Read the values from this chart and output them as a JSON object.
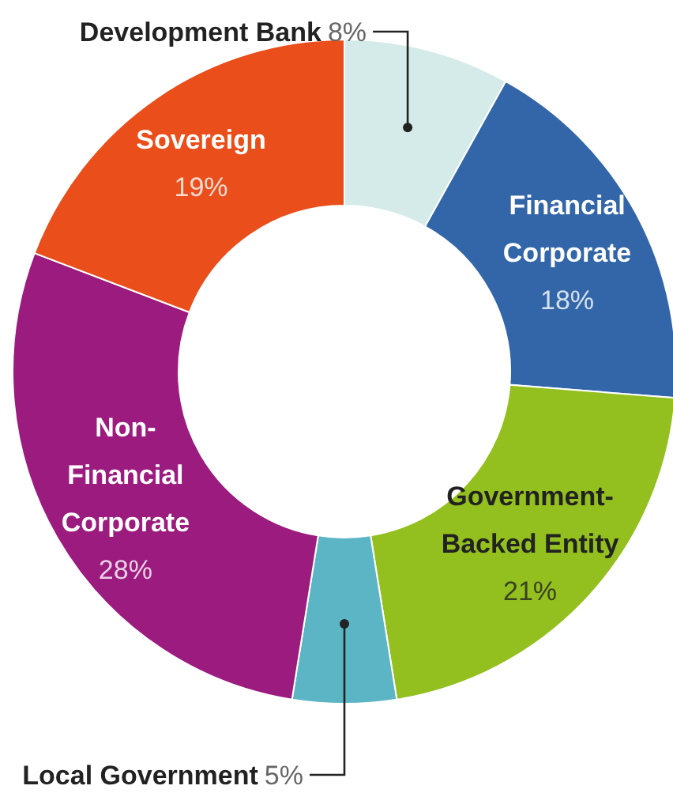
{
  "chart_data": {
    "type": "donut",
    "categories": [
      "Development Bank",
      "Financial Corporate",
      "Government-Backed Entity",
      "Local Government",
      "Non-Financial Corporate",
      "Sovereign"
    ],
    "values": [
      8,
      18,
      21,
      5,
      28,
      19
    ],
    "value_labels": [
      "8%",
      "18%",
      "21%",
      "5%",
      "28%",
      "19%"
    ],
    "colors": [
      "#d5ebe9",
      "#3366a8",
      "#93c01f",
      "#5bb5c4",
      "#9b1b7e",
      "#e94e1b"
    ]
  }
}
